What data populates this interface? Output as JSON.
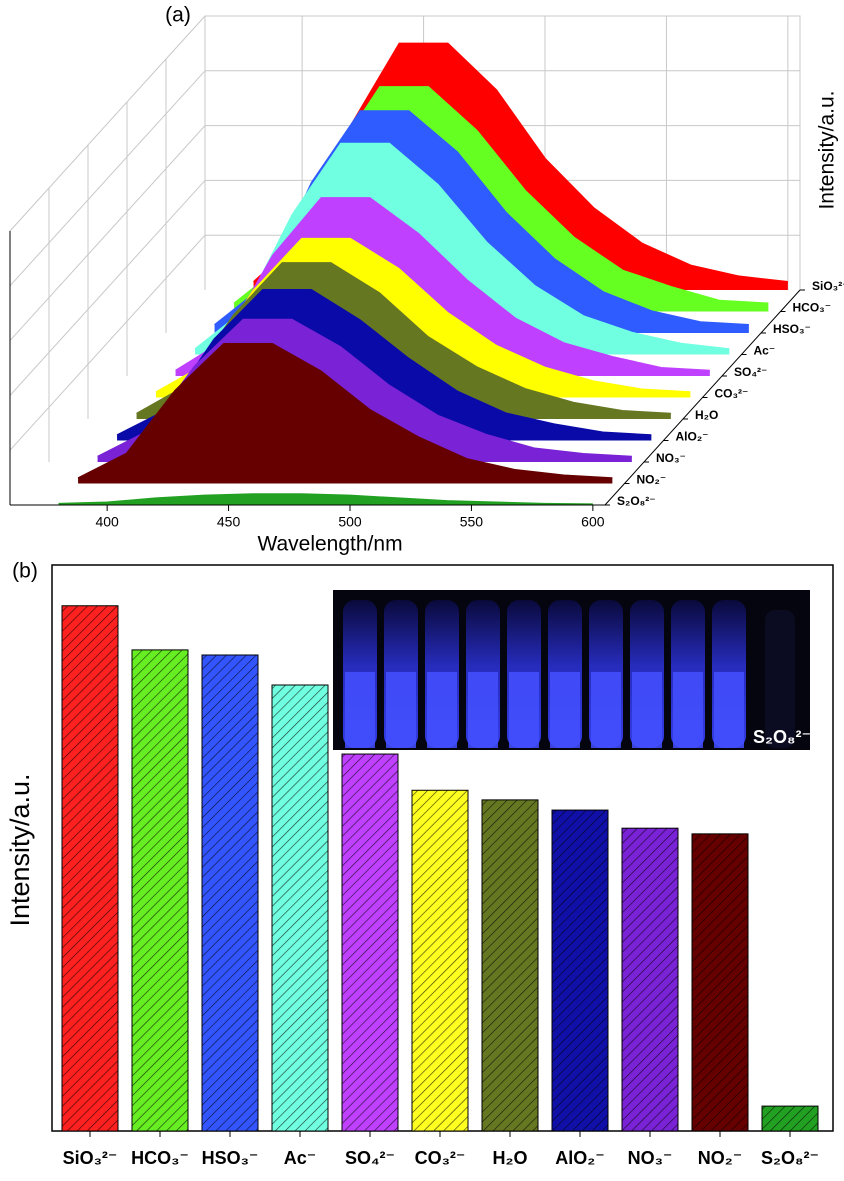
{
  "chart_data": [
    {
      "type": "waterfall",
      "panel_label": "(a)",
      "x_label": "Wavelength/nm",
      "y_label": "Intensity/a.u.",
      "x": [
        380,
        400,
        420,
        440,
        460,
        480,
        500,
        520,
        540,
        560,
        580,
        600
      ],
      "xlim": [
        360,
        605
      ],
      "xticks": [
        400,
        450,
        500,
        550,
        600
      ],
      "ylim": [
        0,
        100
      ],
      "series": [
        {
          "name": "S₂O₈²⁻",
          "color": "#22a022",
          "values": [
            0.5,
            1,
            2.5,
            3.5,
            4,
            4,
            3.5,
            2.5,
            1.5,
            1,
            0.5,
            0.3
          ]
        },
        {
          "name": "NO₂⁻",
          "color": "#660000",
          "values": [
            2,
            11,
            34,
            51,
            51,
            41,
            27,
            17,
            9,
            5,
            3,
            2
          ]
        },
        {
          "name": "NO₃⁻",
          "color": "#7a22d6",
          "values": [
            2,
            11,
            35,
            52,
            52,
            42,
            28,
            17,
            10,
            5,
            3,
            2
          ]
        },
        {
          "name": "AlO₂⁻",
          "color": "#0a0aa8",
          "values": [
            2,
            11,
            37,
            55,
            55,
            44,
            30,
            18,
            10,
            6,
            3,
            2
          ]
        },
        {
          "name": "H₂O",
          "color": "#667722",
          "values": [
            2,
            12,
            38,
            57,
            57,
            46,
            30,
            19,
            11,
            6,
            3,
            2
          ]
        },
        {
          "name": "CO₃²⁻",
          "color": "#ffff00",
          "values": [
            2,
            12,
            39,
            58,
            58,
            47,
            31,
            19,
            11,
            6,
            3,
            2
          ]
        },
        {
          "name": "SO₄²⁻",
          "color": "#c040ff",
          "values": [
            2,
            13,
            44,
            65,
            65,
            52,
            35,
            21,
            12,
            7,
            3,
            2
          ]
        },
        {
          "name": "Ac⁻",
          "color": "#70ffe0",
          "values": [
            2,
            16,
            51,
            77,
            77,
            62,
            41,
            25,
            14,
            8,
            4,
            2
          ]
        },
        {
          "name": "HSO₃⁻",
          "color": "#2f5cff",
          "values": [
            3,
            17,
            55,
            81,
            81,
            66,
            44,
            27,
            15,
            8,
            4,
            3
          ]
        },
        {
          "name": "HCO₃⁻",
          "color": "#66ff22",
          "values": [
            3,
            17,
            55,
            82,
            82,
            66,
            44,
            27,
            15,
            9,
            4,
            3
          ]
        },
        {
          "name": "SiO₃²⁻",
          "color": "#ff0000",
          "values": [
            3,
            19,
            60,
            90,
            90,
            73,
            48,
            30,
            17,
            9,
            5,
            3
          ]
        }
      ]
    },
    {
      "type": "bar",
      "panel_label": "(b)",
      "y_label": "Intensity/a.u.",
      "inset_label": "S₂O₈²⁻",
      "categories": [
        "SiO₃²⁻",
        "HCO₃⁻",
        "HSO₃⁻",
        "Ac⁻",
        "SO₄²⁻",
        "CO₃²⁻",
        "H₂O",
        "AlO₂⁻",
        "NO₃⁻",
        "NO₂⁻",
        "S₂O₈²⁻"
      ],
      "values": [
        92.8,
        85,
        84.1,
        78.8,
        66.6,
        60.2,
        58.5,
        56.7,
        53.5,
        52.5,
        4.4
      ],
      "colors": [
        "#ff2020",
        "#66ee22",
        "#3355ff",
        "#70ffe0",
        "#c040ff",
        "#ffff20",
        "#667722",
        "#1010a8",
        "#7a22d6",
        "#660000",
        "#22a022"
      ],
      "ylim": [
        0,
        100
      ],
      "hatch": true
    }
  ]
}
